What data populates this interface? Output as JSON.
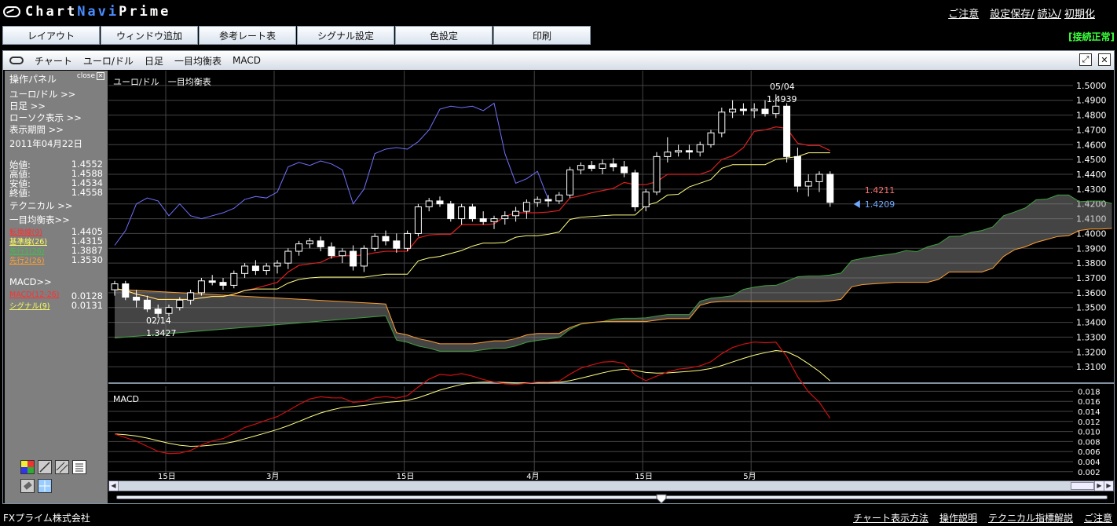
{
  "app": {
    "logo_prefix": "Chart",
    "logo_mid": "Navi",
    "logo_suffix": "Prime"
  },
  "toplinks": [
    "ご注意",
    "設定保存/",
    "読込/",
    "初期化"
  ],
  "menu": [
    "レイアウト",
    "ウィンドウ追加",
    "参考レート表",
    "シグナル設定",
    "色設定",
    "印刷"
  ],
  "status": "[接続正常]",
  "window": {
    "title_items": [
      "チャート",
      "ユーロ/ドル",
      "日足",
      "一目均衡表",
      "MACD"
    ],
    "restore_icon": "restore-icon",
    "close_icon": "close-icon"
  },
  "panel": {
    "title": "操作パネル",
    "close_label": "close",
    "pair_link": "ユーロ/ドル >>",
    "timeframe_link": "日足 >>",
    "candle_link": "ローソク表示 >>",
    "period_link": "表示期間 >>",
    "date": "2011年04月22日",
    "ohlc": [
      {
        "label": "始値:",
        "value": "1.4552"
      },
      {
        "label": "高値:",
        "value": "1.4588"
      },
      {
        "label": "安値:",
        "value": "1.4534"
      },
      {
        "label": "終値:",
        "value": "1.4558"
      }
    ],
    "technical_link": "テクニカル >>",
    "ichimoku_link": "一目均衡表>>",
    "ichimoku": [
      {
        "label": "転換線(9)",
        "value": "1.4405",
        "color": "#ff3030"
      },
      {
        "label": "基準線(26)",
        "value": "1.4315",
        "color": "#ffff60"
      },
      {
        "label": "先行1(26)",
        "value": "1.3887",
        "color": "#40c040"
      },
      {
        "label": "先行2(26)",
        "value": "1.3530",
        "color": "#ffa030"
      }
    ],
    "macd_link": "MACD>>",
    "macd": [
      {
        "label": "MACD(12-26)",
        "value": "0.0128",
        "color": "#ff3030"
      },
      {
        "label": "シグナル(9)",
        "value": "0.0131",
        "color": "#ffff60"
      }
    ],
    "tools": [
      "palette-icon",
      "line-tool-icon",
      "parallel-line-icon",
      "text-tool-icon",
      "eraser-icon",
      "crosshair-icon"
    ]
  },
  "chart": {
    "main_label": "ユーロ/ドル　一目均衡表",
    "macd_label": "MACD",
    "price_axis": [
      "1.5000",
      "1.4900",
      "1.4800",
      "1.4700",
      "1.4600",
      "1.4500",
      "1.4400",
      "1.4300",
      "1.4200",
      "1.4100",
      "1.4000",
      "1.3900",
      "1.3800",
      "1.3700",
      "1.3600",
      "1.3500",
      "1.3400",
      "1.3300",
      "1.3200",
      "1.3100"
    ],
    "macd_axis": [
      "0.018",
      "0.016",
      "0.014",
      "0.012",
      "0.010",
      "0.008",
      "0.006",
      "0.004",
      "0.002"
    ],
    "date_axis": [
      "15日",
      "3月",
      "15日",
      "4月",
      "15日",
      "5月"
    ],
    "annotations": {
      "high_date": "05/04",
      "high_price": "1.4939",
      "low_date": "02/14",
      "low_price": "1.3427",
      "kijun_last": "1.4211",
      "price_last": "1.4209"
    }
  },
  "chart_data": {
    "type": "candlestick",
    "x_range": [
      "2011-02-04",
      "2011-05-19"
    ],
    "y_range": [
      1.3,
      1.51
    ],
    "title": "ユーロ/ドル　一目均衡表",
    "candles_ohlc": [
      [
        1.362,
        1.368,
        1.358,
        1.366
      ],
      [
        1.366,
        1.368,
        1.355,
        1.357
      ],
      [
        1.357,
        1.362,
        1.35,
        1.355
      ],
      [
        1.355,
        1.358,
        1.347,
        1.349
      ],
      [
        1.349,
        1.352,
        1.343,
        1.346
      ],
      [
        1.346,
        1.352,
        1.344,
        1.35
      ],
      [
        1.35,
        1.357,
        1.348,
        1.355
      ],
      [
        1.355,
        1.362,
        1.352,
        1.36
      ],
      [
        1.36,
        1.37,
        1.358,
        1.368
      ],
      [
        1.368,
        1.372,
        1.365,
        1.367
      ],
      [
        1.367,
        1.37,
        1.362,
        1.365
      ],
      [
        1.365,
        1.375,
        1.363,
        1.373
      ],
      [
        1.373,
        1.38,
        1.37,
        1.378
      ],
      [
        1.378,
        1.382,
        1.372,
        1.375
      ],
      [
        1.375,
        1.38,
        1.372,
        1.378
      ],
      [
        1.378,
        1.382,
        1.373,
        1.38
      ],
      [
        1.38,
        1.39,
        1.376,
        1.388
      ],
      [
        1.388,
        1.395,
        1.385,
        1.393
      ],
      [
        1.393,
        1.397,
        1.39,
        1.395
      ],
      [
        1.395,
        1.398,
        1.388,
        1.391
      ],
      [
        1.391,
        1.394,
        1.383,
        1.385
      ],
      [
        1.385,
        1.39,
        1.38,
        1.388
      ],
      [
        1.388,
        1.392,
        1.375,
        1.378
      ],
      [
        1.378,
        1.392,
        1.374,
        1.39
      ],
      [
        1.39,
        1.4,
        1.388,
        1.398
      ],
      [
        1.398,
        1.402,
        1.392,
        1.395
      ],
      [
        1.395,
        1.4,
        1.387,
        1.39
      ],
      [
        1.39,
        1.402,
        1.388,
        1.4
      ],
      [
        1.4,
        1.42,
        1.398,
        1.418
      ],
      [
        1.418,
        1.424,
        1.415,
        1.422
      ],
      [
        1.422,
        1.425,
        1.418,
        1.42
      ],
      [
        1.42,
        1.422,
        1.408,
        1.41
      ],
      [
        1.41,
        1.42,
        1.406,
        1.418
      ],
      [
        1.418,
        1.42,
        1.408,
        1.41
      ],
      [
        1.41,
        1.415,
        1.406,
        1.408
      ],
      [
        1.408,
        1.412,
        1.403,
        1.41
      ],
      [
        1.41,
        1.415,
        1.406,
        1.412
      ],
      [
        1.412,
        1.418,
        1.408,
        1.415
      ],
      [
        1.415,
        1.423,
        1.41,
        1.421
      ],
      [
        1.421,
        1.425,
        1.418,
        1.423
      ],
      [
        1.423,
        1.426,
        1.418,
        1.422
      ],
      [
        1.422,
        1.428,
        1.42,
        1.426
      ],
      [
        1.426,
        1.445,
        1.424,
        1.443
      ],
      [
        1.443,
        1.448,
        1.44,
        1.446
      ],
      [
        1.446,
        1.449,
        1.442,
        1.444
      ],
      [
        1.444,
        1.45,
        1.44,
        1.447
      ],
      [
        1.447,
        1.451,
        1.442,
        1.445
      ],
      [
        1.445,
        1.449,
        1.438,
        1.441
      ],
      [
        1.441,
        1.443,
        1.415,
        1.418
      ],
      [
        1.418,
        1.43,
        1.415,
        1.428
      ],
      [
        1.428,
        1.455,
        1.426,
        1.452
      ],
      [
        1.452,
        1.465,
        1.448,
        1.455
      ],
      [
        1.455,
        1.46,
        1.452,
        1.456
      ],
      [
        1.456,
        1.46,
        1.45,
        1.455
      ],
      [
        1.455,
        1.462,
        1.452,
        1.46
      ],
      [
        1.46,
        1.47,
        1.458,
        1.468
      ],
      [
        1.468,
        1.485,
        1.465,
        1.482
      ],
      [
        1.482,
        1.49,
        1.478,
        1.484
      ],
      [
        1.484,
        1.488,
        1.48,
        1.483
      ],
      [
        1.483,
        1.488,
        1.478,
        1.484
      ],
      [
        1.484,
        1.49,
        1.479,
        1.481
      ],
      [
        1.481,
        1.494,
        1.478,
        1.486
      ],
      [
        1.486,
        1.488,
        1.448,
        1.452
      ],
      [
        1.452,
        1.458,
        1.428,
        1.432
      ],
      [
        1.432,
        1.44,
        1.425,
        1.435
      ],
      [
        1.435,
        1.442,
        1.428,
        1.44
      ],
      [
        1.44,
        1.442,
        1.418,
        1.421
      ]
    ]
  }
}
